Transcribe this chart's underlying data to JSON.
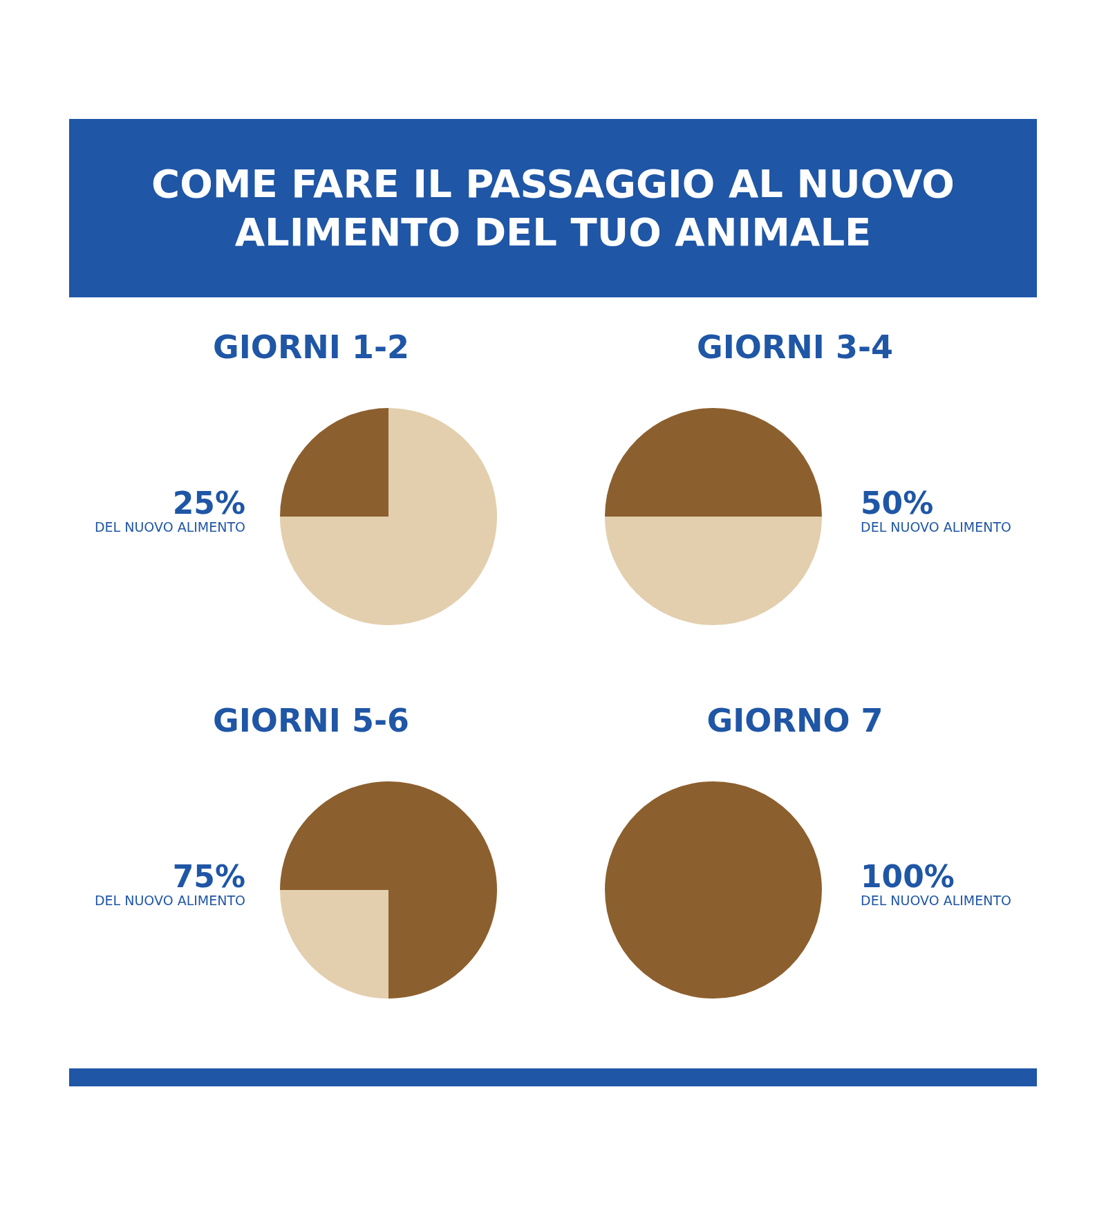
{
  "chart_data": [
    {
      "type": "other",
      "title": "COME FARE IL PASSAGGIO AL NUOVO ALIMENTO DEL TUO ANIMALE"
    },
    {
      "type": "pie",
      "title": "GIORNI 1-2",
      "categories": [
        null,
        null
      ],
      "values": [
        25,
        75
      ],
      "colors": [
        "#8c5f2e",
        "#e3cfae"
      ],
      "value_labels": [
        "25%",
        null
      ],
      "annotations": [
        "DEL NUOVO ALIMENTO"
      ]
    },
    {
      "type": "pie",
      "title": "GIORNI 3-4",
      "categories": [
        null,
        null
      ],
      "values": [
        50,
        50
      ],
      "colors": [
        "#8c5f2e",
        "#e3cfae"
      ],
      "value_labels": [
        "50%",
        null
      ],
      "annotations": [
        "DEL NUOVO ALIMENTO"
      ]
    },
    {
      "type": "pie",
      "title": "GIORNI 5-6",
      "categories": [
        null,
        null
      ],
      "values": [
        75,
        25
      ],
      "colors": [
        "#8c5f2e",
        "#e3cfae"
      ],
      "value_labels": [
        "75%",
        null
      ],
      "annotations": [
        "DEL NUOVO ALIMENTO"
      ]
    },
    {
      "type": "pie",
      "title": "GIORNO 7",
      "categories": [
        null,
        null
      ],
      "values": [
        100,
        0
      ],
      "colors": [
        "#8c5f2e",
        "#e3cfae"
      ],
      "value_labels": [
        "100%",
        null
      ],
      "annotations": [
        "DEL NUOVO ALIMENTO"
      ]
    }
  ]
}
